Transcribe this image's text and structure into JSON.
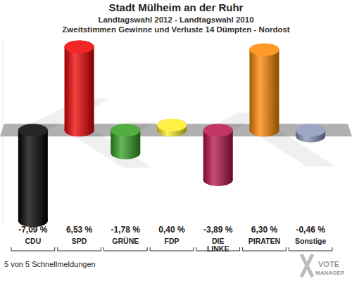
{
  "chart_data": {
    "type": "bar",
    "title": "Stadt Mülheim an der Ruhr",
    "subtitle": [
      "Landtagswahl 2012 - Landtagswahl 2010",
      "Zweitstimmen Gewinne und Verluste 14 Dümpten - Nordost"
    ],
    "categories": [
      "CDU",
      "SPD",
      "GRÜNE",
      "FDP",
      "DIE LINKE",
      "PIRATEN",
      "Sonstige"
    ],
    "values": [
      -7.09,
      6.53,
      -1.78,
      0.4,
      -3.89,
      6.3,
      -0.46
    ],
    "value_labels": [
      "-7,09 %",
      "6,53 %",
      "-1,78 %",
      "0,40 %",
      "-3,89 %",
      "6,30 %",
      "-0,46 %"
    ],
    "colors": [
      "#000000",
      "#ee0000",
      "#33a020",
      "#ffee22",
      "#b8104c",
      "#ff8800",
      "#8a97bb"
    ],
    "ylim": [
      -7.3,
      7.0
    ],
    "data_labels": true,
    "tick_labels": "x",
    "annotations": [
      "5 von 5 Schnellmeldungen",
      "VOTE",
      "MANAGER"
    ]
  }
}
